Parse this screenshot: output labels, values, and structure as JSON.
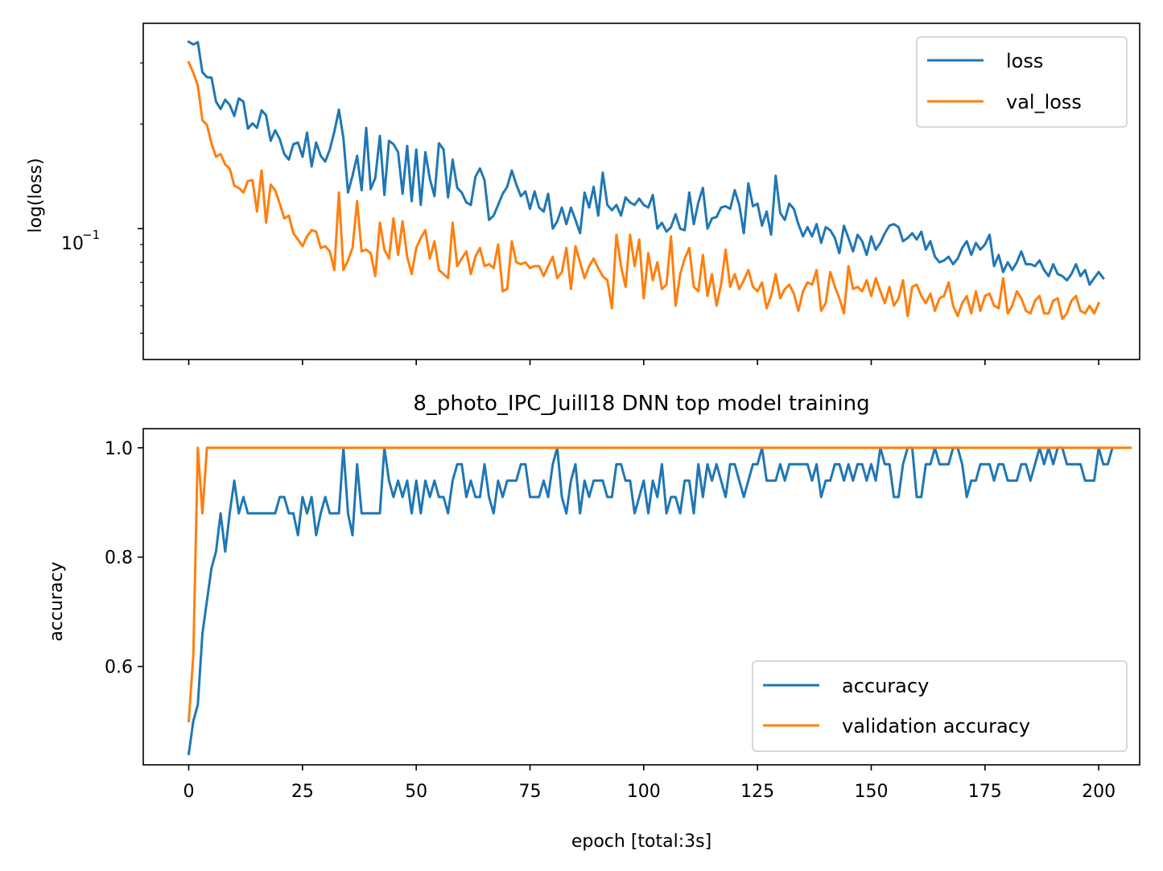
{
  "chart_data": [
    {
      "type": "line",
      "ylabel": "log(loss)",
      "yscale": "log",
      "ylim": [
        0.042,
        0.39
      ],
      "xlim": [
        -10,
        209
      ],
      "x_tick_values": [
        0,
        25,
        50,
        75,
        100,
        125,
        150,
        175,
        200
      ],
      "y_tick_values": [
        0.1
      ],
      "y_tick_labels": [
        "10",
        "−1"
      ],
      "legend_position": "upper right",
      "series": [
        {
          "name": "loss",
          "color": "#1f77b4",
          "values": [
            0.345,
            0.339,
            0.344,
            0.282,
            0.273,
            0.272,
            0.232,
            0.221,
            0.235,
            0.227,
            0.211,
            0.237,
            0.232,
            0.194,
            0.201,
            0.195,
            0.219,
            0.212,
            0.179,
            0.192,
            0.181,
            0.164,
            0.158,
            0.175,
            0.177,
            0.161,
            0.189,
            0.151,
            0.177,
            0.162,
            0.156,
            0.169,
            0.19,
            0.22,
            0.182,
            0.127,
            0.142,
            0.162,
            0.129,
            0.195,
            0.13,
            0.14,
            0.185,
            0.125,
            0.179,
            0.175,
            0.166,
            0.126,
            0.173,
            0.12,
            0.169,
            0.117,
            0.166,
            0.139,
            0.124,
            0.176,
            0.169,
            0.123,
            0.158,
            0.131,
            0.127,
            0.119,
            0.117,
            0.141,
            0.149,
            0.138,
            0.106,
            0.109,
            0.117,
            0.126,
            0.132,
            0.147,
            0.134,
            0.124,
            0.128,
            0.114,
            0.128,
            0.115,
            0.112,
            0.126,
            0.1,
            0.105,
            0.115,
            0.103,
            0.115,
            0.106,
            0.097,
            0.127,
            0.115,
            0.132,
            0.109,
            0.145,
            0.117,
            0.113,
            0.117,
            0.109,
            0.123,
            0.119,
            0.117,
            0.122,
            0.117,
            0.115,
            0.125,
            0.1,
            0.104,
            0.098,
            0.101,
            0.11,
            0.1,
            0.099,
            0.127,
            0.103,
            0.119,
            0.131,
            0.1,
            0.107,
            0.108,
            0.115,
            0.116,
            0.114,
            0.129,
            0.117,
            0.097,
            0.135,
            0.116,
            0.118,
            0.102,
            0.112,
            0.096,
            0.142,
            0.111,
            0.106,
            0.118,
            0.114,
            0.103,
            0.095,
            0.101,
            0.095,
            0.103,
            0.091,
            0.101,
            0.099,
            0.094,
            0.085,
            0.102,
            0.094,
            0.086,
            0.096,
            0.092,
            0.084,
            0.095,
            0.087,
            0.091,
            0.097,
            0.102,
            0.103,
            0.101,
            0.092,
            0.094,
            0.097,
            0.093,
            0.098,
            0.087,
            0.092,
            0.083,
            0.08,
            0.081,
            0.083,
            0.079,
            0.082,
            0.088,
            0.092,
            0.084,
            0.091,
            0.087,
            0.09,
            0.096,
            0.078,
            0.084,
            0.075,
            0.08,
            0.076,
            0.08,
            0.086,
            0.079,
            0.079,
            0.078,
            0.081,
            0.076,
            0.073,
            0.079,
            0.074,
            0.073,
            0.071,
            0.074,
            0.079,
            0.073,
            0.076,
            0.069,
            0.072,
            0.075,
            0.072
          ]
        },
        {
          "name": "val_loss",
          "color": "#ff7f0e",
          "values": [
            0.301,
            0.281,
            0.258,
            0.205,
            0.199,
            0.176,
            0.161,
            0.164,
            0.153,
            0.149,
            0.133,
            0.131,
            0.127,
            0.137,
            0.138,
            0.112,
            0.147,
            0.104,
            0.134,
            0.129,
            0.118,
            0.107,
            0.109,
            0.097,
            0.093,
            0.089,
            0.095,
            0.099,
            0.098,
            0.088,
            0.089,
            0.086,
            0.076,
            0.127,
            0.076,
            0.081,
            0.088,
            0.12,
            0.086,
            0.087,
            0.085,
            0.073,
            0.104,
            0.087,
            0.082,
            0.107,
            0.084,
            0.105,
            0.083,
            0.074,
            0.088,
            0.094,
            0.099,
            0.082,
            0.092,
            0.076,
            0.074,
            0.072,
            0.104,
            0.078,
            0.082,
            0.086,
            0.074,
            0.083,
            0.088,
            0.078,
            0.079,
            0.077,
            0.09,
            0.066,
            0.067,
            0.092,
            0.08,
            0.079,
            0.08,
            0.077,
            0.078,
            0.078,
            0.073,
            0.078,
            0.083,
            0.072,
            0.075,
            0.088,
            0.067,
            0.089,
            0.08,
            0.072,
            0.078,
            0.082,
            0.077,
            0.073,
            0.071,
            0.059,
            0.096,
            0.078,
            0.068,
            0.096,
            0.078,
            0.093,
            0.063,
            0.085,
            0.071,
            0.08,
            0.067,
            0.069,
            0.095,
            0.06,
            0.074,
            0.082,
            0.088,
            0.068,
            0.066,
            0.084,
            0.064,
            0.074,
            0.06,
            0.069,
            0.087,
            0.068,
            0.074,
            0.067,
            0.071,
            0.076,
            0.068,
            0.066,
            0.07,
            0.059,
            0.064,
            0.074,
            0.063,
            0.067,
            0.069,
            0.065,
            0.058,
            0.066,
            0.07,
            0.069,
            0.076,
            0.058,
            0.061,
            0.075,
            0.068,
            0.063,
            0.057,
            0.078,
            0.067,
            0.068,
            0.066,
            0.071,
            0.064,
            0.072,
            0.066,
            0.061,
            0.068,
            0.06,
            0.063,
            0.071,
            0.056,
            0.068,
            0.069,
            0.064,
            0.061,
            0.065,
            0.058,
            0.063,
            0.064,
            0.07,
            0.06,
            0.056,
            0.061,
            0.064,
            0.057,
            0.066,
            0.058,
            0.064,
            0.065,
            0.06,
            0.059,
            0.072,
            0.057,
            0.06,
            0.066,
            0.063,
            0.058,
            0.057,
            0.062,
            0.064,
            0.057,
            0.057,
            0.062,
            0.063,
            0.055,
            0.057,
            0.062,
            0.064,
            0.058,
            0.057,
            0.06,
            0.057,
            0.061
          ]
        }
      ]
    },
    {
      "type": "line",
      "title": "8_photo_IPC_Juill18 DNN top model training",
      "xlabel": "epoch [total:3s]",
      "ylabel": "accuracy",
      "ylim": [
        0.42,
        1.035
      ],
      "xlim": [
        -10,
        209
      ],
      "x_tick_values": [
        0,
        25,
        50,
        75,
        100,
        125,
        150,
        175,
        200
      ],
      "y_tick_values": [
        0.6,
        0.8,
        1.0
      ],
      "legend_position": "lower right",
      "series": [
        {
          "name": "accuracy",
          "color": "#1f77b4",
          "values": [
            0.44,
            0.5,
            0.53,
            0.66,
            0.72,
            0.78,
            0.81,
            0.88,
            0.81,
            0.88,
            0.94,
            0.88,
            0.91,
            0.88,
            0.88,
            0.88,
            0.88,
            0.88,
            0.88,
            0.88,
            0.91,
            0.91,
            0.88,
            0.88,
            0.84,
            0.91,
            0.88,
            0.91,
            0.84,
            0.88,
            0.91,
            0.88,
            0.88,
            0.88,
            1.0,
            0.88,
            0.84,
            0.97,
            0.88,
            0.88,
            0.88,
            0.88,
            0.88,
            1.0,
            0.94,
            0.91,
            0.94,
            0.91,
            0.94,
            0.88,
            0.94,
            0.88,
            0.94,
            0.91,
            0.94,
            0.91,
            0.91,
            0.88,
            0.94,
            0.97,
            0.97,
            0.91,
            0.94,
            0.91,
            0.91,
            0.97,
            0.91,
            0.88,
            0.94,
            0.91,
            0.94,
            0.94,
            0.94,
            0.97,
            0.97,
            0.91,
            0.91,
            0.91,
            0.94,
            0.91,
            0.97,
            1.0,
            0.91,
            0.88,
            0.94,
            0.97,
            0.88,
            0.94,
            0.91,
            0.94,
            0.94,
            0.94,
            0.91,
            0.91,
            0.97,
            0.97,
            0.94,
            0.94,
            0.88,
            0.91,
            0.94,
            0.88,
            0.94,
            0.91,
            0.97,
            0.88,
            0.91,
            0.91,
            0.88,
            0.94,
            0.94,
            0.88,
            0.97,
            0.91,
            0.97,
            0.94,
            0.97,
            0.94,
            0.91,
            0.97,
            0.97,
            0.94,
            0.91,
            0.94,
            0.97,
            0.97,
            1.0,
            0.94,
            0.94,
            0.94,
            0.97,
            0.94,
            0.97,
            0.97,
            0.97,
            0.97,
            0.97,
            0.94,
            0.97,
            0.91,
            0.94,
            0.94,
            0.97,
            0.97,
            0.94,
            0.97,
            0.94,
            0.97,
            0.97,
            0.94,
            0.97,
            0.94,
            1.0,
            0.97,
            0.97,
            0.91,
            0.91,
            0.97,
            1.0,
            1.0,
            0.91,
            0.91,
            0.97,
            0.97,
            1.0,
            0.97,
            0.97,
            0.97,
            1.0,
            1.0,
            0.97,
            0.91,
            0.94,
            0.94,
            0.97,
            0.97,
            0.97,
            0.94,
            0.97,
            0.97,
            0.94,
            0.94,
            0.94,
            0.97,
            0.97,
            0.94,
            0.97,
            1.0,
            0.97,
            1.0,
            0.97,
            1.0,
            1.0,
            0.97,
            0.97,
            0.97,
            0.97,
            0.94,
            0.94,
            0.94,
            1.0,
            0.97,
            0.97,
            1.0
          ]
        },
        {
          "name": "validation accuracy",
          "color": "#ff7f0e",
          "values": [
            0.5,
            0.62,
            1.0,
            0.88,
            1.0,
            1.0,
            1.0,
            1.0,
            1.0,
            1.0,
            1.0,
            1.0,
            1.0,
            1.0,
            1.0,
            1.0,
            1.0,
            1.0,
            1.0,
            1.0,
            1.0,
            1.0,
            1.0,
            1.0,
            1.0,
            1.0,
            1.0,
            1.0,
            1.0,
            1.0,
            1.0,
            1.0,
            1.0,
            1.0,
            1.0,
            1.0,
            1.0,
            1.0,
            1.0,
            1.0,
            1.0,
            1.0,
            1.0,
            1.0,
            1.0,
            1.0,
            1.0,
            1.0,
            1.0,
            1.0,
            1.0,
            1.0,
            1.0,
            1.0,
            1.0,
            1.0,
            1.0,
            1.0,
            1.0,
            1.0,
            1.0,
            1.0,
            1.0,
            1.0,
            1.0,
            1.0,
            1.0,
            1.0,
            1.0,
            1.0,
            1.0,
            1.0,
            1.0,
            1.0,
            1.0,
            1.0,
            1.0,
            1.0,
            1.0,
            1.0,
            1.0,
            1.0,
            1.0,
            1.0,
            1.0,
            1.0,
            1.0,
            1.0,
            1.0,
            1.0,
            1.0,
            1.0,
            1.0,
            1.0,
            1.0,
            1.0,
            1.0,
            1.0,
            1.0,
            1.0,
            1.0,
            1.0,
            1.0,
            1.0,
            1.0,
            1.0,
            1.0,
            1.0,
            1.0,
            1.0,
            1.0,
            1.0,
            1.0,
            1.0,
            1.0,
            1.0,
            1.0,
            1.0,
            1.0,
            1.0,
            1.0,
            1.0,
            1.0,
            1.0,
            1.0,
            1.0,
            1.0,
            1.0,
            1.0,
            1.0,
            1.0,
            1.0,
            1.0,
            1.0,
            1.0,
            1.0,
            1.0,
            1.0,
            1.0,
            1.0,
            1.0,
            1.0,
            1.0,
            1.0,
            1.0,
            1.0,
            1.0,
            1.0,
            1.0,
            1.0,
            1.0,
            1.0,
            1.0,
            1.0,
            1.0,
            1.0,
            1.0,
            1.0,
            1.0,
            1.0,
            1.0,
            1.0,
            1.0,
            1.0,
            1.0,
            1.0,
            1.0,
            1.0,
            1.0,
            1.0,
            1.0,
            1.0,
            1.0,
            1.0,
            1.0,
            1.0,
            1.0,
            1.0,
            1.0,
            1.0,
            1.0,
            1.0,
            1.0,
            1.0,
            1.0,
            1.0,
            1.0,
            1.0,
            1.0,
            1.0,
            1.0,
            1.0,
            1.0,
            1.0,
            1.0,
            1.0,
            1.0,
            1.0,
            1.0,
            1.0,
            1.0,
            1.0,
            1.0,
            1.0,
            1.0,
            1.0,
            1.0,
            1.0
          ]
        }
      ]
    }
  ]
}
